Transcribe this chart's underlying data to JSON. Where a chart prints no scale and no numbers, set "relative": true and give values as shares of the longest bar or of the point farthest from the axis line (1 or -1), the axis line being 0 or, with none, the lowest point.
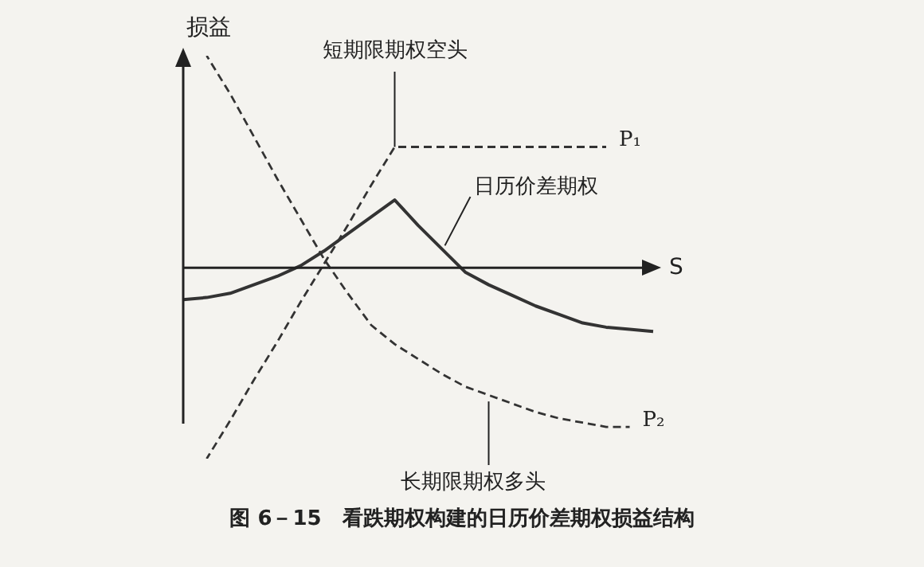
{
  "chart_data": {
    "type": "line",
    "title": "图 6－15　看跌期权构建的日历价差期权损益结构",
    "xlabel": "S",
    "ylabel": "损益",
    "relative": true,
    "legend": false,
    "marker": "none",
    "categories": [
      null,
      null,
      null,
      null,
      null,
      null,
      null,
      null,
      null,
      null,
      null,
      null,
      null,
      null,
      null,
      null,
      null,
      null,
      null,
      null,
      null
    ],
    "series": [
      {
        "name": "短期限期权空头",
        "color": "#333333",
        "line_style": "dashed",
        "values": [
          null,
          -0.9,
          -0.72,
          -0.53,
          -0.35,
          -0.16,
          0.02,
          0.2,
          0.39,
          0.57,
          0.57,
          0.57,
          0.57,
          0.57,
          0.57,
          0.57,
          0.57,
          0.57,
          0.57,
          null,
          null
        ]
      },
      {
        "name": "长期限期权多头",
        "color": "#333333",
        "line_style": "dashed",
        "values": [
          null,
          1,
          0.82,
          0.62,
          0.42,
          0.23,
          0.04,
          -0.12,
          -0.27,
          -0.36,
          -0.43,
          -0.5,
          -0.56,
          -0.6,
          -0.64,
          -0.68,
          -0.71,
          -0.73,
          -0.75,
          -0.75,
          null
        ]
      },
      {
        "name": "日历价差期权",
        "color": "#333333",
        "line_style": "solid",
        "values": [
          -0.15,
          -0.14,
          -0.12,
          -0.08,
          -0.04,
          0.01,
          0.08,
          0.16,
          0.24,
          0.32,
          0.2,
          0.09,
          -0.02,
          -0.08,
          -0.13,
          -0.18,
          -0.22,
          -0.26,
          -0.28,
          -0.29,
          -0.3
        ]
      }
    ],
    "annotations": [
      "P₁",
      "P₂"
    ]
  }
}
